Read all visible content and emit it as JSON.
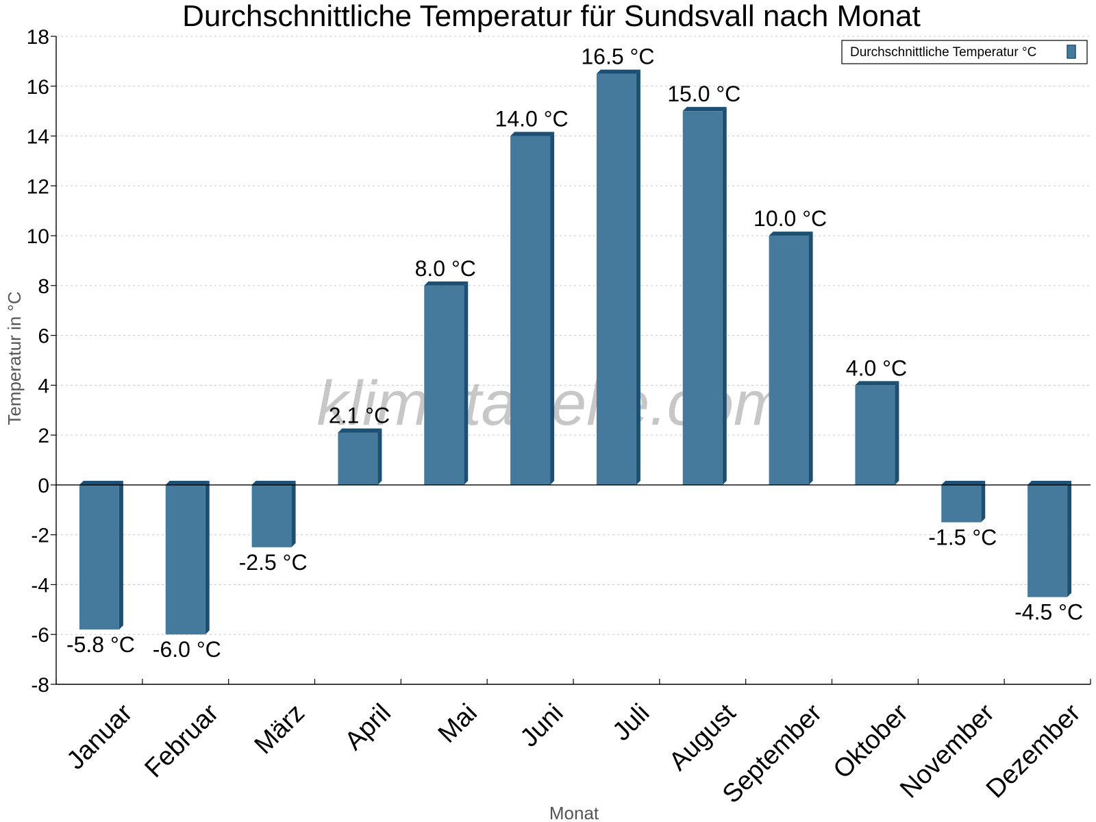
{
  "chart_data": {
    "type": "bar",
    "title": "Durchschnittliche Temperatur für Sundsvall nach Monat",
    "xlabel": "Monat",
    "ylabel": "Temperatur in °C",
    "categories": [
      "Januar",
      "Februar",
      "März",
      "April",
      "Mai",
      "Juni",
      "Juli",
      "August",
      "September",
      "Oktober",
      "November",
      "Dezember"
    ],
    "series": [
      {
        "name": "Durchschnittliche Temperatur °C",
        "values": [
          -5.8,
          -6.0,
          -2.5,
          2.1,
          8.0,
          14.0,
          16.5,
          15.0,
          10.0,
          4.0,
          -1.5,
          -4.5
        ],
        "data_labels": [
          "-5.8 °C",
          "-6.0 °C",
          "-2.5 °C",
          "2.1 °C",
          "8.0 °C",
          "14.0 °C",
          "16.5 °C",
          "15.0 °C",
          "10.0 °C",
          "4.0 °C",
          "-1.5 °C",
          "-4.5 °C"
        ],
        "color": "#457a9c",
        "edge_color": "#1d4f72"
      }
    ],
    "ylim": [
      -8,
      18
    ],
    "yticks": [
      "-8",
      "-6",
      "-4",
      "-2",
      "0",
      "2",
      "4",
      "6",
      "8",
      "10",
      "12",
      "14",
      "16",
      "18"
    ],
    "grid": true,
    "legend_position": "top-right",
    "watermark": "klimatabelle.com"
  }
}
